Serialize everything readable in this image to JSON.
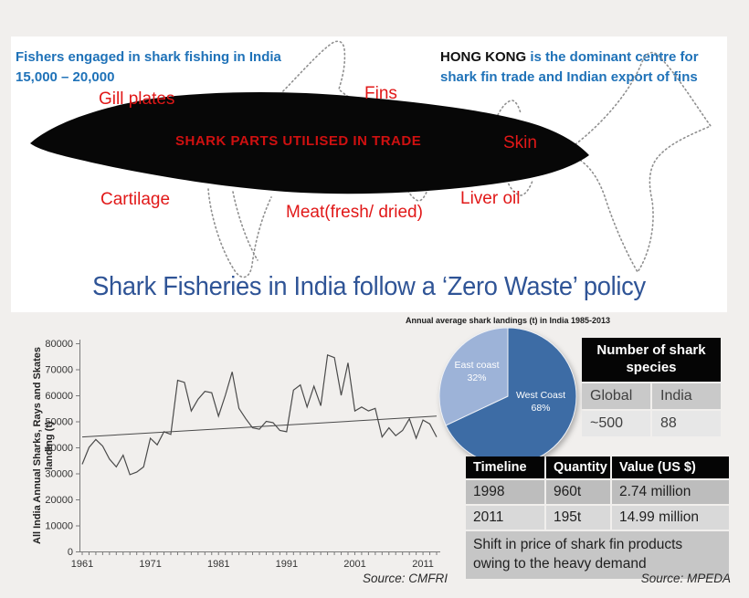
{
  "colors": {
    "background": "#f1efed",
    "panel": "#ffffff",
    "accent_blue": "#1f72b8",
    "title_blue": "#2f5496",
    "label_red": "#e11818",
    "banner_red": "#cf1010",
    "pie_west": "#3d6ca5",
    "pie_east": "#9db3d8",
    "table_header": "#050505"
  },
  "top_panel": {
    "fishers_line1": "Fishers engaged in shark fishing in India",
    "fishers_line2": "15,000 – 20,000",
    "hk_bold": "HONG KONG",
    "hk_rest": " is the dominant centre for",
    "hk_line2": "shark fin trade and Indian export of fins",
    "labels": {
      "gill_plates": "Gill plates",
      "fins": "Fins",
      "skin": "Skin",
      "cartilage": "Cartilage",
      "meat": "Meat(fresh/ dried)",
      "liver_oil": "Liver oil",
      "banner": "SHARK PARTS UTILISED IN TRADE"
    }
  },
  "main_title": "Shark Fisheries in India follow a ‘Zero Waste’  policy",
  "chart_data": [
    {
      "type": "line",
      "title": "",
      "xlabel": "",
      "ylabel": "All India Annual Sharks, Rays and Skates landing (t)",
      "ylabel_lines": [
        "All India Annual Sharks, Rays and Skates",
        "landing (t)"
      ],
      "x_start": 1961,
      "x_end": 2013,
      "x_ticks": [
        1961,
        1971,
        1981,
        1991,
        2001,
        2011
      ],
      "ylim": [
        0,
        80000
      ],
      "y_ticks": [
        0,
        10000,
        20000,
        30000,
        40000,
        50000,
        60000,
        70000,
        80000
      ],
      "grid": false,
      "values": [
        33500,
        40000,
        43000,
        40500,
        35500,
        32500,
        37000,
        29500,
        30500,
        32500,
        43500,
        41000,
        46000,
        45000,
        65800,
        65000,
        54000,
        58500,
        61500,
        61000,
        52000,
        60000,
        69000,
        55000,
        51000,
        47500,
        47000,
        50000,
        49500,
        46500,
        46000,
        62000,
        64000,
        55500,
        63500,
        56000,
        75500,
        74500,
        60000,
        72500,
        54000,
        55500,
        54000,
        55000,
        44000,
        47500,
        44500,
        46500,
        51000,
        43500,
        50500,
        49000,
        44000
      ],
      "trend_line": {
        "y_at_1961": 44000,
        "y_at_2013": 52000
      }
    },
    {
      "type": "pie",
      "title": "Annual average shark landings (t) in India 1985-2013",
      "legend_position": "none",
      "slices": [
        {
          "name": "West Coast",
          "value": 68,
          "pct_label": "68%",
          "color": "#3d6ca5"
        },
        {
          "name": "East coast",
          "value": 32,
          "pct_label": "32%",
          "color": "#9db3d8"
        }
      ]
    }
  ],
  "species_table": {
    "title": "Number of shark species",
    "headers": [
      "Global",
      "India"
    ],
    "values": [
      "~500",
      "88"
    ]
  },
  "trade_table": {
    "headers": [
      "Timeline",
      "Quantity",
      "Value (US $)"
    ],
    "rows": [
      [
        "1998",
        "960t",
        "2.74 million"
      ],
      [
        "2011",
        "195t",
        "14.99 million"
      ]
    ],
    "note": "Shift in price of shark fin products owing to the heavy demand"
  },
  "sources": {
    "line_chart": "Source: CMFRI",
    "trade_table": "Source: MPEDA"
  }
}
